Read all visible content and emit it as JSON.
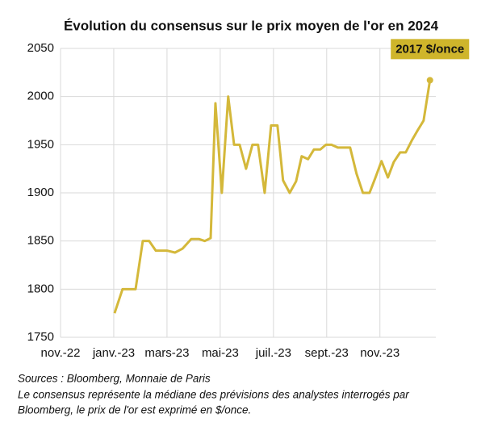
{
  "chart_data": {
    "type": "line",
    "title": "Évolution du consensus sur le prix moyen de l'or en 2024",
    "x": [
      2.03,
      2.33,
      2.82,
      3.09,
      3.33,
      3.58,
      4.0,
      4.3,
      4.58,
      4.91,
      5.21,
      5.42,
      5.64,
      5.82,
      6.06,
      6.3,
      6.52,
      6.73,
      6.97,
      7.21,
      7.42,
      7.67,
      7.91,
      8.15,
      8.36,
      8.61,
      8.85,
      9.06,
      9.3,
      9.52,
      9.76,
      9.97,
      10.18,
      10.42,
      10.64,
      10.88,
      11.12,
      11.36,
      11.61,
      11.82,
      12.06,
      12.3,
      12.52,
      12.76,
      12.97,
      13.21,
      13.42,
      13.64,
      13.88
    ],
    "series": [
      {
        "name": "Consensus",
        "color": "#d4b83a",
        "values": [
          1775,
          1800,
          1800,
          1850,
          1850,
          1840,
          1840,
          1838,
          1842,
          1852,
          1852,
          1850,
          1853,
          1993,
          1900,
          2000,
          1950,
          1950,
          1925,
          1950,
          1950,
          1900,
          1970,
          1970,
          1913,
          1900,
          1912,
          1938,
          1935,
          1945,
          1945,
          1950,
          1950,
          1947,
          1947,
          1947,
          1920,
          1900,
          1900,
          1915,
          1933,
          1916,
          1932,
          1942,
          1942,
          1955,
          1965,
          1975,
          2017
        ]
      }
    ],
    "xlim": [
      0,
      14.1
    ],
    "xticks": [
      {
        "value": 0,
        "label": "nov.-22"
      },
      {
        "value": 2,
        "label": "janv.-23"
      },
      {
        "value": 4,
        "label": "mars-23"
      },
      {
        "value": 6,
        "label": "mai-23"
      },
      {
        "value": 8,
        "label": "juil.-23"
      },
      {
        "value": 10,
        "label": "sept.-23"
      },
      {
        "value": 12,
        "label": "nov.-23"
      }
    ],
    "ylim": [
      1750,
      2050
    ],
    "yticks": [
      1750,
      1800,
      1850,
      1900,
      1950,
      2000,
      2050
    ],
    "grid": true,
    "annotation": "2017 $/once",
    "annotation_color": "#cfb52b",
    "source": "Sources : Bloomberg, Monnaie de Paris",
    "note": [
      "Le consensus représente la médiane des prévisions des analystes interrogés par",
      "Bloomberg, le prix de l'or est exprimé en $/once."
    ]
  }
}
